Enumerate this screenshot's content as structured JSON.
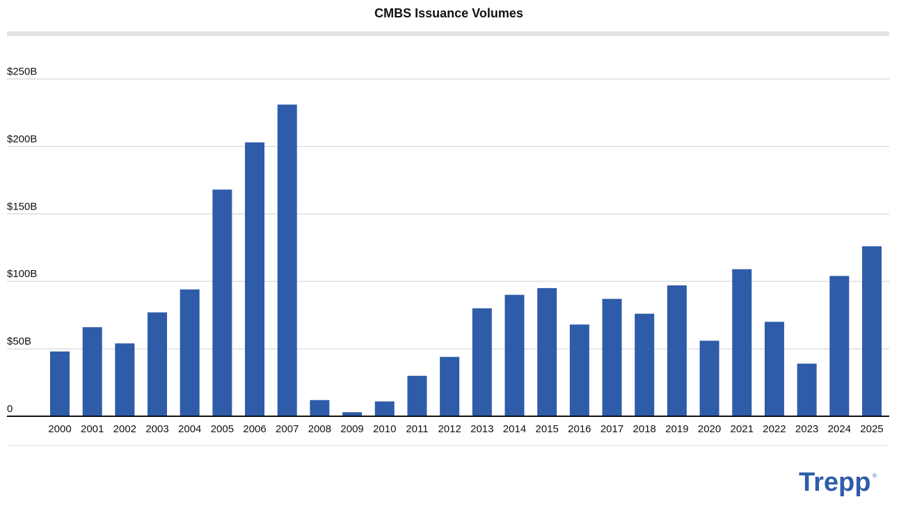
{
  "chart_data": {
    "type": "bar",
    "title": "CMBS Issuance Volumes",
    "categories": [
      "2000",
      "2001",
      "2002",
      "2003",
      "2004",
      "2005",
      "2006",
      "2007",
      "2008",
      "2009",
      "2010",
      "2011",
      "2012",
      "2013",
      "2014",
      "2015",
      "2016",
      "2017",
      "2018",
      "2019",
      "2020",
      "2021",
      "2022",
      "2023",
      "2024",
      "2025"
    ],
    "values": [
      48,
      66,
      54,
      77,
      94,
      168,
      203,
      231,
      12,
      3,
      11,
      30,
      44,
      80,
      90,
      95,
      68,
      87,
      76,
      97,
      56,
      109,
      70,
      39,
      104,
      126
    ],
    "color": "#2e5ca9",
    "ylim": [
      0,
      275
    ],
    "yticks": [
      0,
      {
        "value": 50,
        "label": "$50B"
      },
      {
        "value": 100,
        "label": "$100B"
      },
      {
        "value": 150,
        "label": "$150B"
      },
      {
        "value": 200,
        "label": "$200B"
      },
      {
        "value": 250,
        "label": "$250B"
      }
    ],
    "grid": true
  },
  "logo": "Trepp",
  "logo_mark": "®"
}
